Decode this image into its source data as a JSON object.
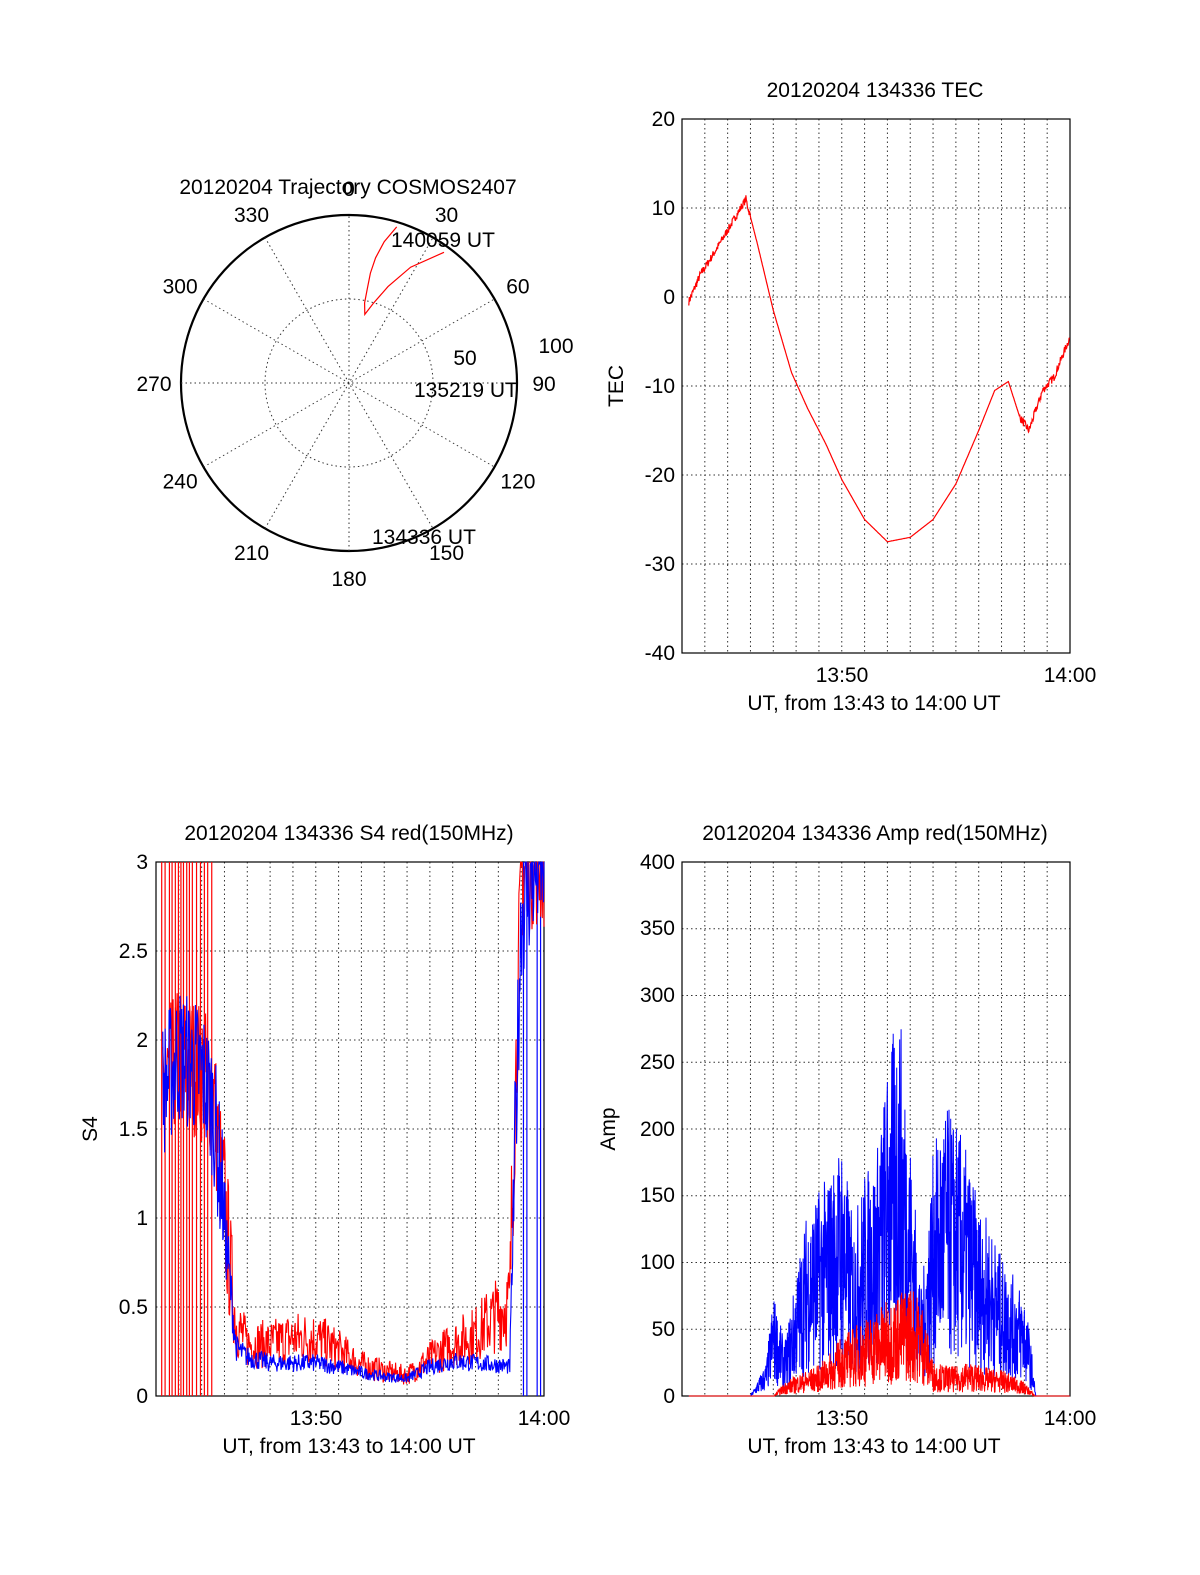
{
  "colors": {
    "red": "#ff0000",
    "blue": "#0000ff",
    "axis": "#000000"
  },
  "chart_data": [
    {
      "type": "scatter",
      "id": "polar",
      "title": "20120204 Trajectory COSMOS2407",
      "azimuth_labels": [
        "0",
        "30",
        "60",
        "90",
        "120",
        "150",
        "180",
        "210",
        "240",
        "270",
        "300",
        "330"
      ],
      "elevation_labels": [
        "50",
        "100"
      ],
      "track_labels": [
        "140059 UT",
        "135219 UT",
        "134336 UT"
      ],
      "track": {
        "azimuth_deg": [
          17,
          14,
          12,
          11,
          11,
          11,
          13,
          17,
          22,
          28,
          36
        ],
        "zenith_deg": [
          102,
          91,
          80,
          70,
          60,
          51,
          44,
          52,
          65,
          82,
          101
        ]
      }
    },
    {
      "type": "line",
      "id": "tec",
      "title": "20120204 134336 TEC",
      "ylabel": "TEC",
      "xlabel": "UT, from 13:43 to 14:00 UT",
      "x_tick_labels": [
        "13:50",
        "14:00"
      ],
      "y_tick_labels": [
        "20",
        "10",
        "0",
        "-10",
        "-20",
        "-30",
        "-40"
      ],
      "xlim_min": [
        43.3,
        60
      ],
      "ylim": [
        -40,
        20
      ],
      "series": [
        {
          "color": "red",
          "x": [
            43.3,
            43.8,
            44.3,
            45.0,
            45.8,
            46.3,
            47.0,
            47.8,
            48.5,
            49.3,
            50.0,
            51.0,
            52.0,
            53.0,
            54.0,
            55.0,
            56.0,
            56.7,
            57.3,
            57.8,
            58.2,
            58.8,
            59.3,
            60.0
          ],
          "y": [
            -0.5,
            2.5,
            4.5,
            7.5,
            11.0,
            6.0,
            -1.5,
            -8.5,
            -12.5,
            -16.5,
            -20.5,
            -25.0,
            -27.5,
            -27.0,
            -25.0,
            -21.0,
            -15.0,
            -10.5,
            -9.5,
            -13.5,
            -15.0,
            -10.5,
            -9.0,
            -4.5
          ]
        }
      ]
    },
    {
      "type": "line",
      "id": "s4",
      "title": "20120204 134336 S4 red(150MHz)",
      "ylabel": "S4",
      "xlabel": "UT, from 13:43 to 14:00 UT",
      "x_tick_labels": [
        "13:50",
        "14:00"
      ],
      "y_tick_labels": [
        "3",
        "2.5",
        "2",
        "1.5",
        "1",
        "0.5",
        "0"
      ],
      "xlim_min": [
        43.3,
        60
      ],
      "ylim": [
        0,
        3
      ],
      "series": [
        {
          "color": "red",
          "x": [
            43.3,
            44.0,
            45.0,
            45.5,
            46.0,
            46.5,
            47.0,
            48.0,
            49.0,
            50.0,
            51.0,
            52.0,
            53.0,
            54.0,
            55.0,
            56.0,
            57.0,
            58.0,
            58.5,
            59.0,
            59.5,
            60.0
          ],
          "y": [
            1.6,
            1.8,
            1.7,
            1.6,
            0.9,
            0.35,
            0.25,
            0.25,
            0.28,
            0.28,
            0.22,
            0.15,
            0.12,
            0.1,
            0.18,
            0.25,
            0.3,
            0.4,
            0.45,
            2.8,
            2.9,
            2.9
          ]
        },
        {
          "color": "blue",
          "x": [
            43.3,
            44.0,
            45.0,
            45.5,
            46.0,
            46.5,
            47.0,
            48.0,
            49.0,
            50.0,
            51.0,
            52.0,
            53.0,
            54.0,
            55.0,
            56.0,
            57.0,
            58.0,
            58.5,
            59.0,
            59.5,
            60.0
          ],
          "y": [
            1.6,
            1.8,
            1.7,
            1.5,
            0.9,
            0.25,
            0.2,
            0.17,
            0.17,
            0.17,
            0.15,
            0.12,
            0.1,
            0.09,
            0.15,
            0.18,
            0.17,
            0.16,
            0.15,
            2.6,
            2.8,
            2.9
          ]
        }
      ]
    },
    {
      "type": "line",
      "id": "amp",
      "title": "20120204 134336 Amp red(150MHz)",
      "ylabel": "Amp",
      "xlabel": "UT, from 13:43 to 14:00 UT",
      "x_tick_labels": [
        "13:50",
        "14:00"
      ],
      "y_tick_labels": [
        "400",
        "350",
        "300",
        "250",
        "200",
        "150",
        "100",
        "50",
        "0"
      ],
      "xlim_min": [
        43.3,
        60
      ],
      "ylim": [
        0,
        400
      ],
      "series": [
        {
          "color": "blue",
          "x": [
            43.3,
            46.0,
            46.7,
            47.0,
            47.5,
            48.0,
            48.5,
            49.0,
            49.5,
            50.0,
            50.5,
            51.0,
            51.5,
            52.0,
            52.5,
            53.0,
            53.5,
            54.0,
            54.5,
            55.0,
            55.5,
            56.0,
            56.5,
            57.0,
            57.5,
            58.0,
            58.3,
            58.5,
            60.0
          ],
          "y": [
            0,
            0,
            20,
            60,
            30,
            70,
            110,
            120,
            130,
            150,
            100,
            130,
            140,
            190,
            230,
            150,
            60,
            140,
            170,
            160,
            140,
            110,
            100,
            80,
            70,
            60,
            30,
            0,
            0
          ]
        },
        {
          "color": "red",
          "x": [
            43.3,
            47.0,
            47.5,
            48.0,
            48.5,
            49.0,
            49.5,
            50.0,
            50.5,
            51.0,
            51.5,
            52.0,
            52.5,
            53.0,
            53.5,
            54.0,
            54.5,
            55.0,
            55.5,
            56.0,
            56.5,
            57.0,
            57.5,
            58.0,
            58.5,
            60.0
          ],
          "y": [
            0,
            0,
            8,
            12,
            15,
            18,
            25,
            35,
            40,
            45,
            50,
            55,
            60,
            65,
            55,
            20,
            18,
            17,
            20,
            18,
            16,
            15,
            12,
            8,
            0,
            0
          ]
        }
      ]
    }
  ]
}
